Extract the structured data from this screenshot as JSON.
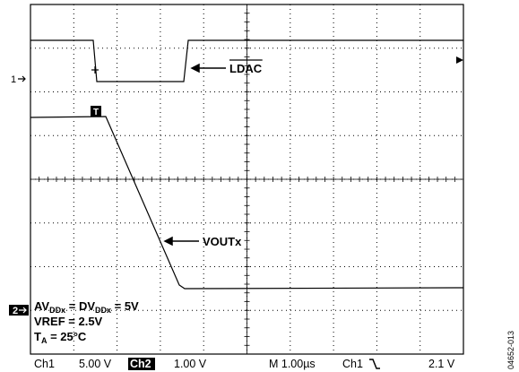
{
  "markers": {
    "ch1": "1",
    "ch2": "2",
    "trigger": "T"
  },
  "labels": {
    "ldac": "LDAC",
    "voutx": "VOUTx"
  },
  "conditions": [
    [
      {
        "text": "AV",
        "sub": false
      },
      {
        "text": "DDx",
        "sub": true
      },
      {
        "text": " = DV",
        "sub": false
      },
      {
        "text": "DDx",
        "sub": true
      },
      {
        "text": " = 5V",
        "sub": false
      }
    ],
    [
      {
        "text": "VREF = 2.5V",
        "sub": false
      }
    ],
    [
      {
        "text": "T",
        "sub": false
      },
      {
        "text": "A",
        "sub": true
      },
      {
        "text": " = 25°C",
        "sub": false
      }
    ]
  ],
  "status_bar": {
    "ch1": "Ch1",
    "ch1_scale": "5.00 V",
    "ch2": "Ch2",
    "ch2_scale": "1.00 V",
    "time": "M 1.00µs",
    "trigger_source": "Ch1",
    "trigger_level": "2.1 V"
  },
  "figure_id": "04652-013"
}
